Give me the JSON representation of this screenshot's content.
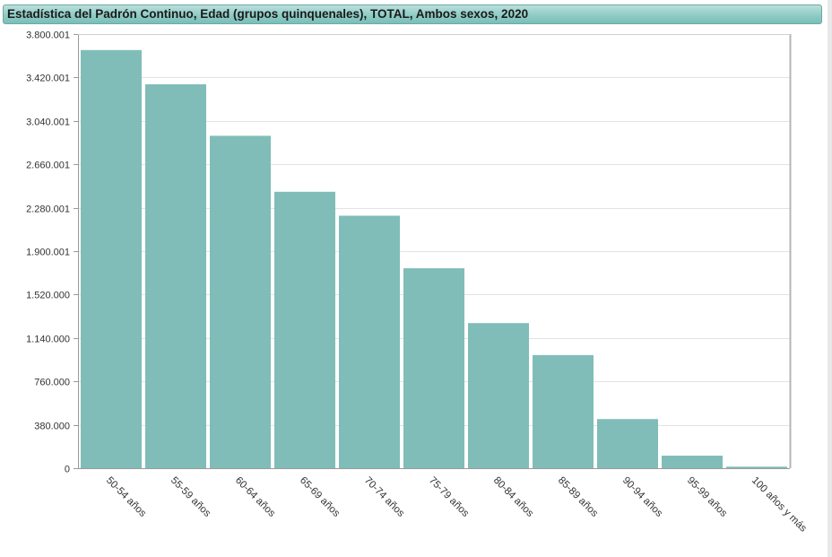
{
  "title": "Estadística del Padrón Continuo, Edad (grupos quinquenales), TOTAL, Ambos sexos, 2020",
  "colors": {
    "bar": "#80bdb8",
    "title_bar": "#8fcbc5",
    "grid": "#e3e3e3",
    "axis": "#9a9a9a"
  },
  "chart_data": {
    "type": "bar",
    "title": "Estadística del Padrón Continuo, Edad (grupos quinquenales), TOTAL, Ambos sexos, 2020",
    "xlabel": "",
    "ylabel": "",
    "categories": [
      "50-54 años",
      "55-59 años",
      "60-64 años",
      "65-69 años",
      "70-74 años",
      "75-79 años",
      "80-84 años",
      "85-89 años",
      "90-94 años",
      "95-99 años",
      "100 años y más"
    ],
    "values": [
      3660000,
      3360000,
      2910000,
      2420000,
      2210000,
      1750000,
      1270000,
      990000,
      430000,
      110000,
      13000
    ],
    "ylim": [
      0,
      3800001
    ],
    "yticks": [
      0,
      380000,
      760000,
      1140000,
      1520000,
      1900001,
      2280001,
      2660001,
      3040001,
      3420001,
      3800001
    ],
    "ytick_labels": [
      "0",
      "380.000",
      "760.000",
      "1.140.000",
      "1.520.000",
      "1.900.001",
      "2.280.001",
      "2.660.001",
      "3.040.001",
      "3.420.001",
      "3.800.001"
    ],
    "grid": true,
    "legend": "none"
  }
}
